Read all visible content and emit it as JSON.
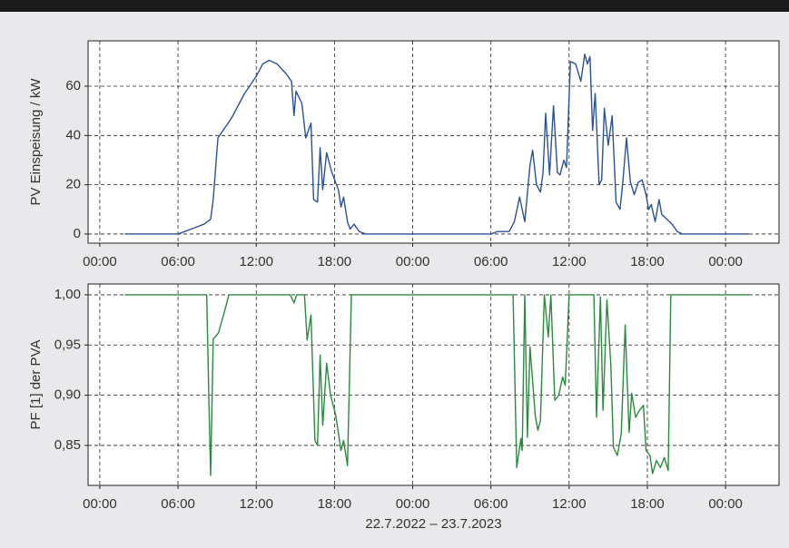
{
  "chart_data": [
    {
      "type": "line",
      "ylabel": "PV Einspeisung / kW",
      "color": "#2a5298",
      "grid": true,
      "xlim": [
        -0.9,
        52.1
      ],
      "ylim": [
        -3.7,
        78.4
      ],
      "xticks": [
        {
          "value": 0,
          "label": "00:00"
        },
        {
          "value": 6,
          "label": "06:00"
        },
        {
          "value": 12,
          "label": "12:00"
        },
        {
          "value": 18,
          "label": "18:00"
        },
        {
          "value": 24,
          "label": "00:00"
        },
        {
          "value": 30,
          "label": "06:00"
        },
        {
          "value": 36,
          "label": "12:00"
        },
        {
          "value": 42,
          "label": "18:00"
        },
        {
          "value": 48,
          "label": "00:00"
        }
      ],
      "yticks": [
        0,
        20,
        40,
        60
      ],
      "x": [
        1.9,
        6,
        7,
        8,
        8.5,
        8.7,
        9.06,
        10.1,
        11.1,
        12,
        12.5,
        13,
        13.6,
        14.3,
        14.7,
        14.9,
        15.05,
        15.5,
        15.8,
        16.2,
        16.4,
        16.7,
        16.9,
        17.1,
        17.4,
        17.8,
        18.3,
        18.5,
        18.7,
        19,
        19.2,
        19.5,
        19.9,
        20.4,
        30,
        30.5,
        31.4,
        31.8,
        32.2,
        32.6,
        33,
        33.2,
        33.5,
        33.8,
        34,
        34.2,
        34.5,
        34.8,
        35.1,
        35.3,
        35.6,
        35.8,
        36.1,
        36.5,
        36.9,
        37.2,
        37.4,
        37.6,
        37.8,
        38,
        38.3,
        38.5,
        38.7,
        39,
        39.3,
        39.6,
        39.9,
        40.1,
        40.4,
        40.7,
        41,
        41.3,
        41.6,
        41.9,
        42.1,
        42.3,
        42.6,
        42.9,
        43.1,
        43.5,
        43.9,
        44.3,
        44.7,
        49.8
      ],
      "values": [
        0,
        0,
        2,
        4,
        6,
        14,
        39,
        47,
        57,
        64,
        69,
        70.5,
        69,
        65,
        62,
        48,
        58,
        53,
        39,
        45,
        14,
        13,
        35,
        18,
        33,
        25,
        18,
        11,
        15,
        5,
        2,
        4,
        1,
        0,
        0,
        1,
        1,
        5,
        15,
        5,
        28,
        34,
        20,
        17,
        25,
        49,
        24,
        52,
        25,
        24,
        30,
        27,
        70,
        69,
        62,
        73,
        69,
        72,
        42,
        57,
        20,
        22,
        51,
        36,
        48,
        13,
        10,
        20,
        39,
        21,
        16,
        21,
        22,
        16,
        10,
        12,
        5,
        14,
        8,
        6,
        4,
        1,
        0,
        0
      ]
    },
    {
      "type": "line",
      "ylabel": "PF [1] der PVA",
      "xlabel": "22.7.2022 – 23.7.2023",
      "color": "#2a8a3e",
      "grid": true,
      "xlim": [
        -0.9,
        52.1
      ],
      "ylim": [
        0.8102,
        1.0108
      ],
      "xticks": [
        {
          "value": 0,
          "label": "00:00"
        },
        {
          "value": 6,
          "label": "06:00"
        },
        {
          "value": 12,
          "label": "12:00"
        },
        {
          "value": 18,
          "label": "18:00"
        },
        {
          "value": 24,
          "label": "00:00"
        },
        {
          "value": 30,
          "label": "06:00"
        },
        {
          "value": 36,
          "label": "12:00"
        },
        {
          "value": 42,
          "label": "18:00"
        },
        {
          "value": 48,
          "label": "00:00"
        }
      ],
      "yticks": [
        {
          "value": 0.85,
          "label": "0,85"
        },
        {
          "value": 0.9,
          "label": "0,90"
        },
        {
          "value": 0.95,
          "label": "0,95"
        },
        {
          "value": 1.0,
          "label": "1,00"
        }
      ],
      "x": [
        1.9,
        8.2,
        8.36,
        8.5,
        8.7,
        9.1,
        9.6,
        9.9,
        14.6,
        14.9,
        15.1,
        15.7,
        15.9,
        16.2,
        16.5,
        16.7,
        16.9,
        17.1,
        17.4,
        17.7,
        18.1,
        18.5,
        18.7,
        19,
        19.3,
        31.7,
        31.98,
        32.3,
        32.4,
        32.6,
        32.8,
        33,
        33.4,
        33.6,
        33.8,
        34.1,
        34.4,
        34.6,
        34.9,
        35.2,
        35.5,
        35.7,
        36,
        37.9,
        38.1,
        38.4,
        38.6,
        38.9,
        39.2,
        39.4,
        39.7,
        40,
        40.3,
        40.6,
        40.8,
        41.1,
        41.4,
        41.7,
        41.9,
        42.2,
        42.4,
        42.7,
        43,
        43.3,
        43.6,
        43.8,
        49.8
      ],
      "values": [
        1,
        1,
        0.9,
        0.82,
        0.956,
        0.962,
        0.985,
        1,
        1,
        0.992,
        1,
        1,
        0.955,
        0.98,
        0.855,
        0.85,
        0.94,
        0.87,
        0.932,
        0.9,
        0.88,
        0.845,
        0.855,
        0.83,
        1,
        1,
        0.828,
        0.857,
        0.845,
        1,
        0.858,
        0.948,
        0.88,
        0.865,
        0.875,
        1,
        0.958,
        1,
        0.895,
        0.9,
        0.918,
        0.91,
        1,
        1,
        0.878,
        0.998,
        0.885,
        0.995,
        0.93,
        0.848,
        0.84,
        0.862,
        0.97,
        0.863,
        0.902,
        0.878,
        0.885,
        0.89,
        0.845,
        0.84,
        0.822,
        0.835,
        0.828,
        0.838,
        0.825,
        1,
        1
      ]
    }
  ]
}
